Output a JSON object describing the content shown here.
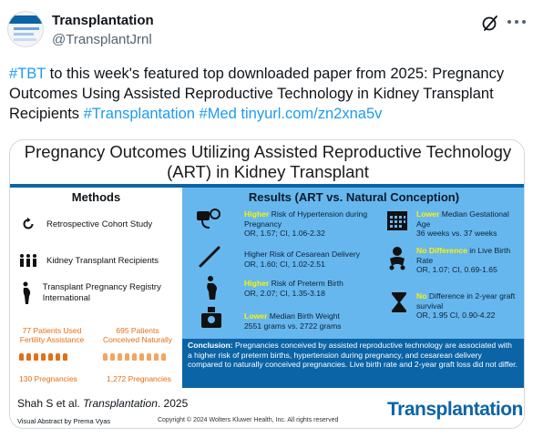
{
  "account": {
    "display_name": "Transplantation",
    "handle": "@TransplantJrnl"
  },
  "tweet": {
    "hashtag_tbt": "#TBT",
    "text_1": " to this week's featured top downloaded paper from 2025: Pregnancy Outcomes Using Assisted Reproductive Technology in Kidney Transplant Recipients ",
    "hashtag_transplantation": "#Transplantation",
    "hashtag_med": "#Med",
    "link": "tinyurl.com/zn2xna5v"
  },
  "visual_abstract": {
    "title": "Pregnancy Outcomes Utilizing Assisted Reproductive Technology (ART) in Kidney Transplant",
    "methods": {
      "heading": "Methods",
      "items": [
        {
          "label": "Retrospective Cohort Study",
          "icon": "circular-arrow-icon"
        },
        {
          "label": "Kidney Transplant Recipients",
          "icon": "people-group-icon"
        },
        {
          "label": "Transplant Pregnancy Registry International",
          "icon": "pregnant-woman-icon"
        }
      ],
      "group_art": {
        "patients": "77 Patients Used Fertility Assistance",
        "pregnancies": "130 Pregnancies"
      },
      "group_natural": {
        "patients": "695 Patients Conceived Naturally",
        "pregnancies": "1,272 Pregnancies"
      }
    },
    "results": {
      "heading": "Results (ART vs. Natural Conception)",
      "items": [
        {
          "highlight": "Higher",
          "text": " Risk of Hypertension during Pregnancy",
          "stat": "OR, 1.57; CI, 1.06-2.32",
          "icon": "blood-pressure-icon"
        },
        {
          "highlight": "",
          "text": "Higher Risk of Cesarean Delivery",
          "stat": "OR, 1.60; CI, 1.02-2.51",
          "icon": "scalpel-icon"
        },
        {
          "highlight": "Higher",
          "text": " Risk of Preterm Birth",
          "stat": "OR, 2.07; CI, 1.35-3.18",
          "icon": "pregnant-woman-icon"
        },
        {
          "highlight": "Lower",
          "text": " Median Birth Weight",
          "stat": "2551 grams vs. 2722 grams",
          "icon": "scale-icon"
        },
        {
          "highlight": "Lower",
          "text": " Median Gestational Age",
          "stat": "36 weeks vs. 37 weeks",
          "icon": "calendar-icon"
        },
        {
          "highlight": "No Difference",
          "text": " in Live Birth Rate",
          "stat": "OR, 1.07; CI, 0.69-1.65",
          "icon": "baby-icon"
        },
        {
          "highlight": "No",
          "text": " Difference in 2-year graft survival",
          "stat": "OR, 1.95 CI, 0.90-4.22",
          "icon": "hourglass-icon"
        }
      ]
    },
    "conclusion": {
      "label": "Conclusion:",
      "text": " Pregnancies conceived by assisted reproductive technology  are associated with a higher risk of preterm births, hypertension during pregnancy, and cesarean delivery compared to naturally conceived pregnancies. Live birth rate and 2-year graft loss did not differ."
    },
    "footer": {
      "citation_authors": "Shah S et al. ",
      "citation_journal": "Transplantation",
      "citation_year": ".  2025",
      "abstract_by": "Visual Abstract by Prema Vyas",
      "copyright": "Copyright © 2024  Wolters Kluwer Health, Inc. All rights reserved",
      "logo": "Transplantation"
    }
  },
  "colors": {
    "link": "#1d9bf0",
    "journal_blue": "#0b64a6",
    "results_bg": "#66b7ee",
    "highlight": "#fff200",
    "accent_orange": "#e36f16"
  }
}
